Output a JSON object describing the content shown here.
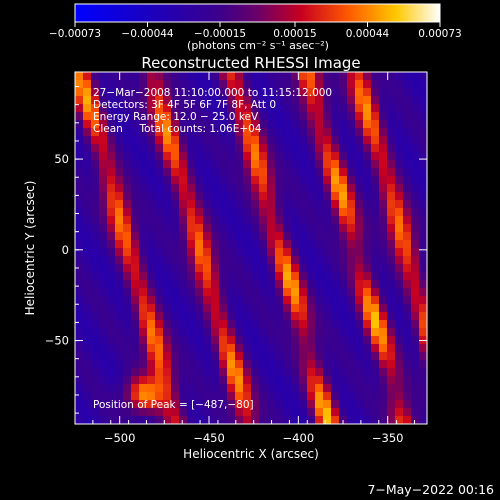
{
  "chart_data": {
    "type": "heatmap",
    "title": "Reconstructed RHESSI Image",
    "xlabel": "Heliocentric X (arcsec)",
    "ylabel": "Heliocentric Y (arcsec)",
    "xlim": [
      -525,
      -328
    ],
    "ylim": [
      -96,
      98
    ],
    "x_ticks": [
      -500,
      -450,
      -400,
      -350
    ],
    "x_tick_labels": [
      "−500",
      "−450",
      "−400",
      "−350"
    ],
    "y_ticks": [
      -50,
      0,
      50
    ],
    "y_tick_labels": [
      "−50",
      "0",
      "50"
    ],
    "colorbar": {
      "range": [
        -0.00073,
        0.00073
      ],
      "ticks": [
        -0.00073,
        -0.00044,
        -0.00015,
        0.00015,
        0.00044,
        0.00073
      ],
      "tick_labels": [
        "−0.00073",
        "−0.00044",
        "−0.00015",
        "0.00015",
        "0.00044",
        "0.00073"
      ],
      "unit_text": "(photons cm⁻² s⁻¹ asec⁻²)"
    },
    "annotations": [
      "27−Mar−2008 11:10:00.000 to 11:15:12.000",
      "Detectors: 3F 4F 5F 6F 7F 8F, Att 0",
      "Energy Range: 12.0 − 25.0 keV",
      "Clean     Total counts: 1.06E+04"
    ],
    "peak_label": "Position of Peak = [−487,−80]",
    "peak": [
      -487,
      -80
    ],
    "stripe_ridges_at_y0": [
      -495,
      -455,
      -410,
      -368,
      -340
    ],
    "stripe_slope_x_per_y": -0.28
  },
  "footer_date": "7−May−2022 00:16"
}
